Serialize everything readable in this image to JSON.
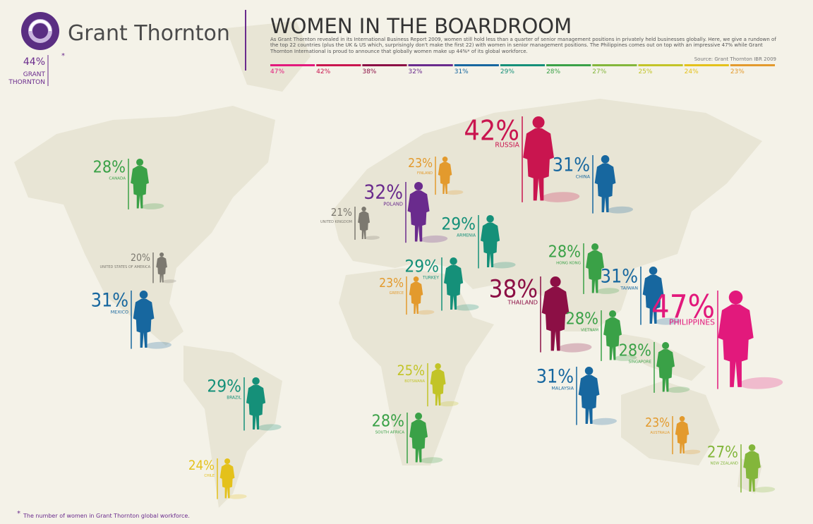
{
  "header": {
    "brand": "Grant Thornton",
    "workforce_pct": "44%",
    "asterisk": "*",
    "workforce_label_1": "GRANT",
    "workforce_label_2": "THORNTON",
    "title": "WOMEN IN THE BOARDROOM",
    "intro": "As Grant Thornton revealed in its International Business Report 2009, women still hold less than a quarter of senior management positions in privately held businesses globally. Here, we give a rundown of the top 22 countries (plus the UK & US which, surprisingly don't make the first 22) with women in senior management positions. The Philippines comes out on top with an impressive 47% while Grant Thornton International is proud to announce that globally women make up 44%* of its global workforce.",
    "source": "Source: Grant Thornton IBR 2009"
  },
  "scale": [
    {
      "label": "47%",
      "color": "#e2197c"
    },
    {
      "label": "42%",
      "color": "#c9154f"
    },
    {
      "label": "38%",
      "color": "#8c0f45"
    },
    {
      "label": "32%",
      "color": "#6a2b8d"
    },
    {
      "label": "31%",
      "color": "#17679f"
    },
    {
      "label": "29%",
      "color": "#159079"
    },
    {
      "label": "28%",
      "color": "#3aa147"
    },
    {
      "label": "27%",
      "color": "#83b63b"
    },
    {
      "label": "25%",
      "color": "#c2c427"
    },
    {
      "label": "24%",
      "color": "#e4c11b"
    },
    {
      "label": "23%",
      "color": "#e39a2d"
    }
  ],
  "countries": [
    {
      "name": "RUSSIA",
      "pct": "42%",
      "color": "#c9154f"
    },
    {
      "name": "CHINA",
      "pct": "31%",
      "color": "#17679f"
    },
    {
      "name": "CANADA",
      "pct": "28%",
      "color": "#3aa147"
    },
    {
      "name": "UNITED STATES OF AMERICA",
      "pct": "20%",
      "color": "#7c7970"
    },
    {
      "name": "MEXICO",
      "pct": "31%",
      "color": "#17679f"
    },
    {
      "name": "BRAZIL",
      "pct": "29%",
      "color": "#159079"
    },
    {
      "name": "CHILE",
      "pct": "24%",
      "color": "#e4c11b"
    },
    {
      "name": "UNITED KINGDOM",
      "pct": "21%",
      "color": "#7c7970"
    },
    {
      "name": "FINLAND",
      "pct": "23%",
      "color": "#e39a2d"
    },
    {
      "name": "POLAND",
      "pct": "32%",
      "color": "#6a2b8d"
    },
    {
      "name": "GREECE",
      "pct": "23%",
      "color": "#e39a2d"
    },
    {
      "name": "TURKEY",
      "pct": "29%",
      "color": "#159079"
    },
    {
      "name": "ARMENIA",
      "pct": "29%",
      "color": "#159079"
    },
    {
      "name": "BOTSWANA",
      "pct": "25%",
      "color": "#c2c427"
    },
    {
      "name": "SOUTH AFRICA",
      "pct": "28%",
      "color": "#3aa147"
    },
    {
      "name": "HONG KONG",
      "pct": "28%",
      "color": "#3aa147"
    },
    {
      "name": "TAIWAN",
      "pct": "31%",
      "color": "#17679f"
    },
    {
      "name": "THAILAND",
      "pct": "38%",
      "color": "#8c0f45"
    },
    {
      "name": "VIETNAM",
      "pct": "28%",
      "color": "#3aa147"
    },
    {
      "name": "PHILIPPINES",
      "pct": "47%",
      "color": "#e2197c"
    },
    {
      "name": "SINGAPORE",
      "pct": "28%",
      "color": "#3aa147"
    },
    {
      "name": "MALAYSIA",
      "pct": "31%",
      "color": "#17679f"
    },
    {
      "name": "AUSTRALIA",
      "pct": "23%",
      "color": "#e39a2d"
    },
    {
      "name": "NEW ZEALAND",
      "pct": "27%",
      "color": "#83b63b"
    }
  ],
  "footnote": {
    "mark": "*",
    "text": "The number of women in Grant Thornton global workforce."
  }
}
